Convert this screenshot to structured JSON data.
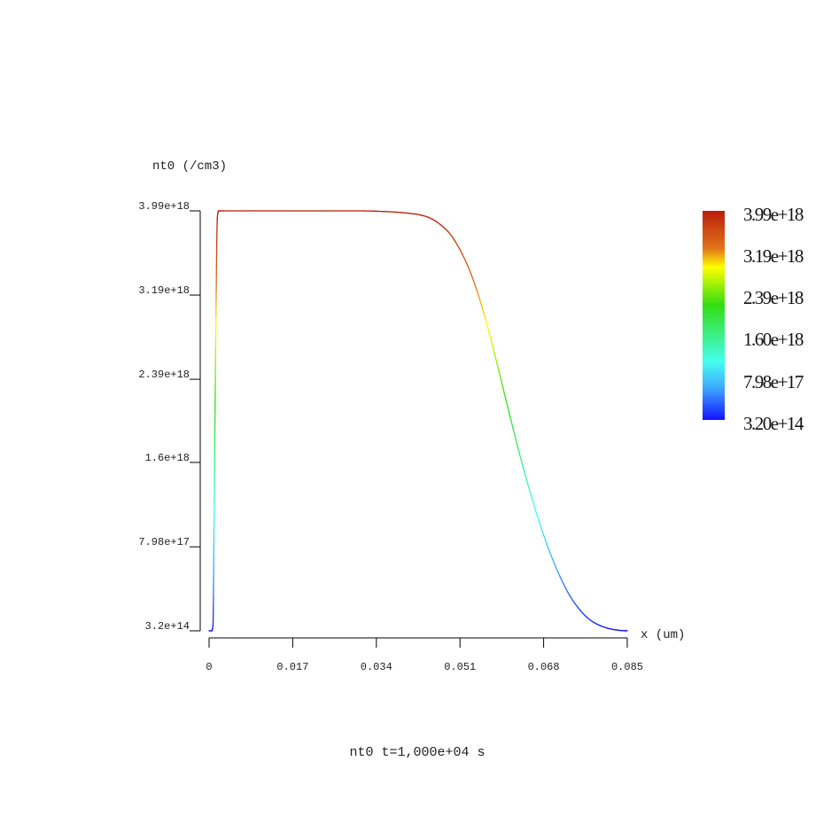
{
  "chart_data": {
    "type": "line",
    "ylabel": "nt0 (/cm3)",
    "xlabel": "x (um)",
    "caption": "nt0 t=1,000e+04 s",
    "xlim": [
      0,
      0.085
    ],
    "ylim": [
      320000000000000.0,
      3.99e+18
    ],
    "x_ticks": [
      {
        "value": 0,
        "label": "0"
      },
      {
        "value": 0.017,
        "label": "0.017"
      },
      {
        "value": 0.034,
        "label": "0.034"
      },
      {
        "value": 0.051,
        "label": "0.051"
      },
      {
        "value": 0.068,
        "label": "0.068"
      },
      {
        "value": 0.085,
        "label": "0.085"
      }
    ],
    "y_ticks": [
      {
        "value": 320000000000000.0,
        "label": "3.2e+14"
      },
      {
        "value": 7.98e+17,
        "label": "7.98e+17"
      },
      {
        "value": 1.6e+18,
        "label": "1.6e+18"
      },
      {
        "value": 2.39e+18,
        "label": "2.39e+18"
      },
      {
        "value": 3.19e+18,
        "label": "3.19e+18"
      },
      {
        "value": 3.99e+18,
        "label": "3.99e+18"
      }
    ],
    "colorbar": {
      "labels": [
        "3.99e+18",
        "3.19e+18",
        "2.39e+18",
        "1.60e+18",
        "7.98e+17",
        "3.20e+14"
      ],
      "colors_top_to_bottom": [
        "#b81e0a",
        "#e2741a",
        "#ffff00",
        "#33dd11",
        "#44ffee",
        "#3fa6ff",
        "#1212ff"
      ]
    },
    "series": [
      {
        "x": [
          0.0,
          0.0005,
          0.0008,
          0.001,
          0.0012,
          0.0014,
          0.0016,
          0.0018,
          0.002,
          0.003,
          0.01,
          0.02,
          0.03,
          0.035,
          0.04,
          0.043,
          0.045,
          0.047,
          0.049,
          0.051,
          0.053,
          0.055,
          0.057,
          0.059,
          0.061,
          0.063,
          0.065,
          0.067,
          0.069,
          0.071,
          0.073,
          0.075,
          0.077,
          0.079,
          0.081,
          0.083,
          0.084,
          0.085
        ],
        "y": [
          320000000000000.0,
          320000000000000.0,
          6e+16,
          1e+18,
          2e+18,
          3e+18,
          3.8e+18,
          3.97e+18,
          3.99e+18,
          3.99e+18,
          3.99e+18,
          3.99e+18,
          3.99e+18,
          3.985e+18,
          3.97e+18,
          3.95e+18,
          3.92e+18,
          3.86e+18,
          3.77e+18,
          3.62e+18,
          3.42e+18,
          3.15e+18,
          2.82e+18,
          2.45e+18,
          2.07e+18,
          1.7e+18,
          1.36e+18,
          1.05e+18,
          7.8e+17,
          5.5e+17,
          3.6e+17,
          2.2e+17,
          1.2e+17,
          6e+16,
          2.5e+16,
          7000000000000000.0,
          2000000000000000.0,
          320000000000000.0
        ]
      }
    ]
  }
}
